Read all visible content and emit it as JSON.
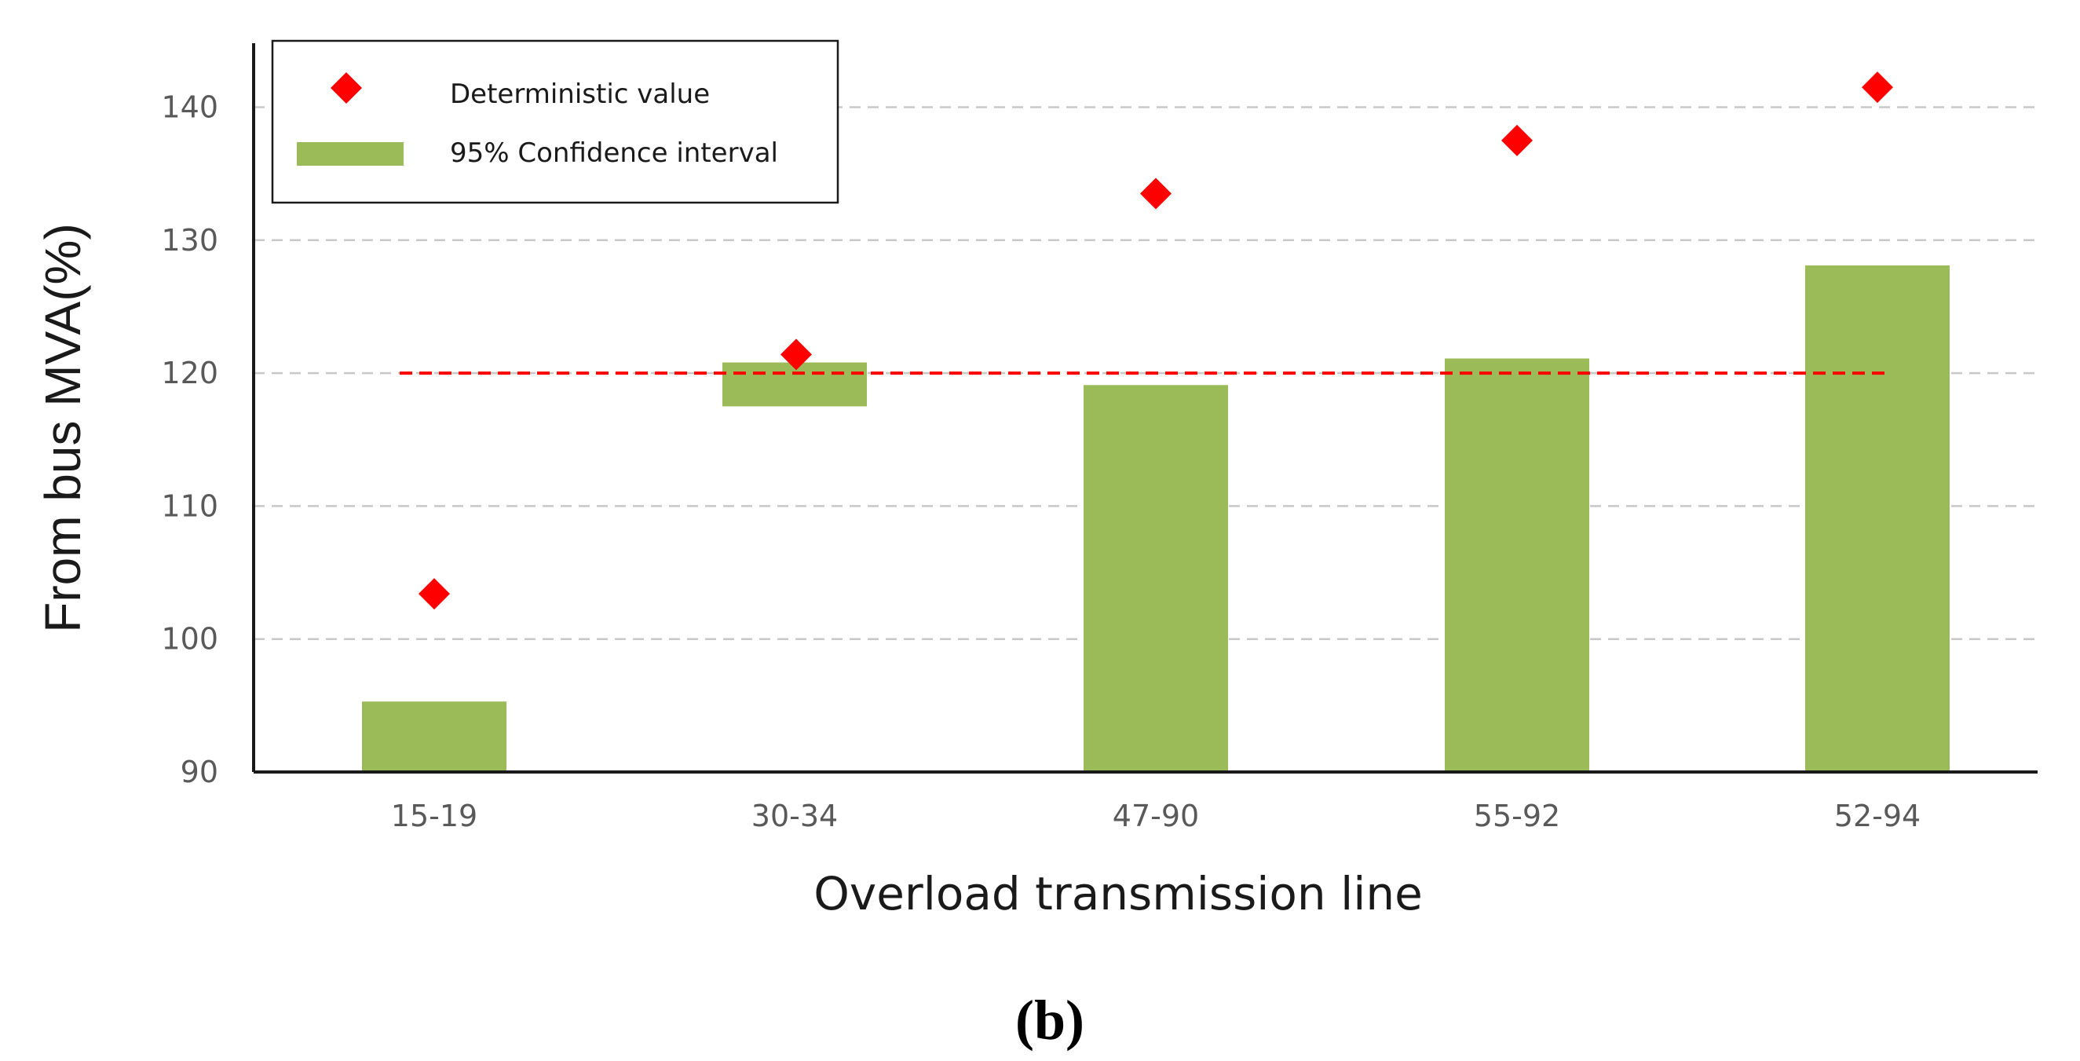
{
  "chart_data": {
    "type": "bar",
    "title": "",
    "xlabel": "Overload transmission line",
    "ylabel": "From bus MVA(%)",
    "ylim": [
      90,
      145
    ],
    "yticks": [
      90,
      100,
      110,
      120,
      130,
      140
    ],
    "grid": true,
    "legend_position": "top-left",
    "categories": [
      "15-19",
      "30-34",
      "47-90",
      "55-92",
      "52-94"
    ],
    "series": [
      {
        "name": "95% Confidence interval",
        "kind": "floating-bar",
        "color": "#9bbb59",
        "lower": [
          90,
          117.5,
          90,
          90,
          90
        ],
        "upper": [
          95.3,
          120.8,
          119.1,
          121.1,
          128.1
        ]
      },
      {
        "name": "Deterministic value",
        "kind": "marker",
        "marker": "diamond",
        "color": "#ff0000",
        "values": [
          103.4,
          121.4,
          133.5,
          137.5,
          141.5
        ]
      }
    ],
    "reference_line": {
      "value": 120,
      "style": "dashed",
      "color": "#ff0000",
      "from_category": "15-19",
      "to_category": "52-94"
    },
    "panel_label": "(b)"
  }
}
